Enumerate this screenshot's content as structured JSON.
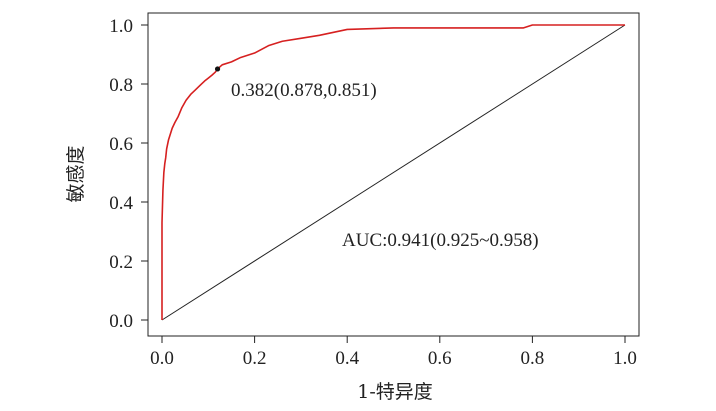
{
  "chart_data": {
    "type": "line",
    "xlabel": "1-特异度",
    "ylabel": "敏感度",
    "xlim": [
      0,
      1
    ],
    "ylim": [
      0,
      1
    ],
    "xticks": [
      "0.0",
      "0.2",
      "0.4",
      "0.6",
      "0.8",
      "1.0"
    ],
    "yticks": [
      "0.0",
      "0.2",
      "0.4",
      "0.6",
      "0.8",
      "1.0"
    ],
    "grid": false,
    "series": [
      {
        "color": "#d62020",
        "x": [
          0,
          0,
          0.002,
          0.004,
          0.006,
          0.008,
          0.01,
          0.014,
          0.018,
          0.022,
          0.028,
          0.035,
          0.043,
          0.052,
          0.062,
          0.072,
          0.082,
          0.092,
          0.1,
          0.108,
          0.115,
          0.12,
          0.13,
          0.15,
          0.17,
          0.2,
          0.23,
          0.26,
          0.3,
          0.34,
          0.4,
          0.5,
          0.6,
          0.7,
          0.78,
          0.8,
          1.0
        ],
        "y": [
          0,
          0.33,
          0.44,
          0.5,
          0.53,
          0.55,
          0.58,
          0.61,
          0.63,
          0.65,
          0.67,
          0.69,
          0.72,
          0.745,
          0.765,
          0.78,
          0.795,
          0.81,
          0.82,
          0.83,
          0.84,
          0.851,
          0.865,
          0.875,
          0.89,
          0.905,
          0.93,
          0.945,
          0.955,
          0.965,
          0.985,
          0.99,
          0.99,
          0.99,
          0.99,
          1.0,
          1.0
        ]
      },
      {
        "color": "#222222",
        "x": [
          0,
          1
        ],
        "y": [
          0,
          1
        ]
      }
    ],
    "marker": {
      "x": 0.12,
      "y": 0.851
    },
    "annotations": [
      {
        "text": "0.382(0.878,0.851)"
      },
      {
        "text": "AUC:0.941(0.925~0.958)"
      }
    ]
  }
}
